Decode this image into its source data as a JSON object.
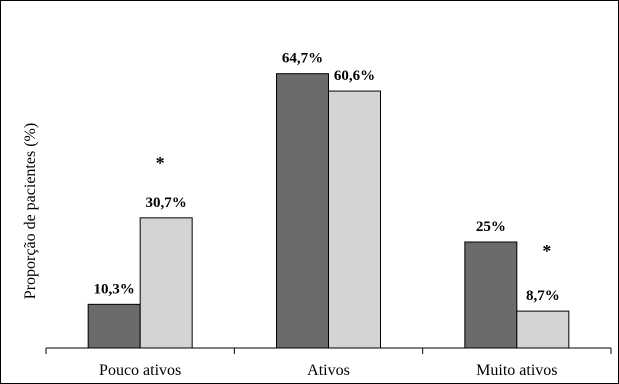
{
  "chart_data": {
    "type": "bar",
    "ylabel": "Proporção de pacientes (%)",
    "categories": [
      "Pouco ativos",
      "Ativos",
      "Muito ativos"
    ],
    "series": [
      {
        "color": "#6b6b6e",
        "values": [
          10.3,
          64.7,
          25
        ],
        "labels": [
          "10,3%",
          "64,7%",
          "25%"
        ]
      },
      {
        "color": "#d4d4d4",
        "values": [
          30.7,
          60.6,
          8.7
        ],
        "labels": [
          "30,7%",
          "60,6%",
          "8,7%"
        ]
      }
    ],
    "significance_marks": [
      {
        "category_index": 0,
        "text": "*"
      },
      {
        "category_index": 2,
        "text": "*"
      }
    ],
    "ylim": [
      0,
      70
    ],
    "grid": false
  }
}
